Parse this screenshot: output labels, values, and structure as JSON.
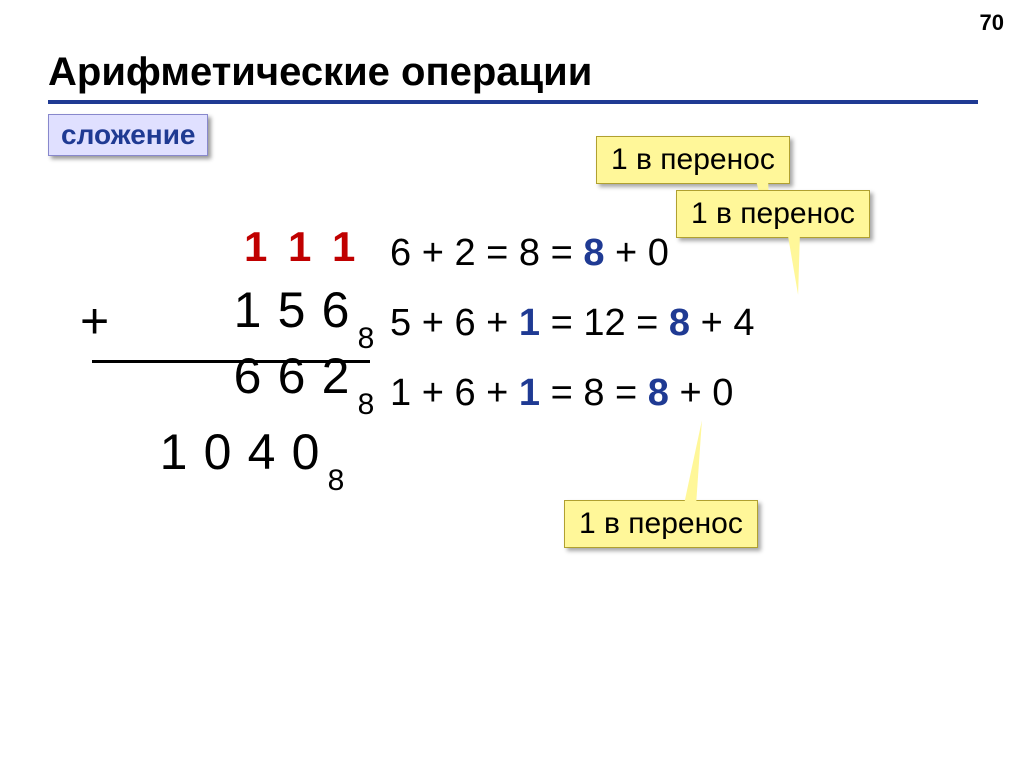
{
  "page_number": "70",
  "title": "Арифметические операции",
  "subtitle": "сложение",
  "colors": {
    "title_underline": "#1f3a93",
    "subtitle_bg": "#e0e0ff",
    "subtitle_text": "#1f3a93",
    "callout_bg": "#fff799",
    "carry_color": "#c00000",
    "accent_blue": "#1f3a93",
    "text": "#000000",
    "background": "#ffffff"
  },
  "callouts": {
    "c1": "1 в перенос",
    "c2": "1 в перенос",
    "c3": "1 в перенос"
  },
  "addition": {
    "base": "8",
    "carry": [
      "1",
      "1",
      "1"
    ],
    "operand_a": [
      "1",
      "5",
      "6"
    ],
    "operand_b": [
      "6",
      "6",
      "2"
    ],
    "plus": "+",
    "result": [
      "1",
      "0",
      "4",
      "0"
    ]
  },
  "explanations": {
    "line1": {
      "pre": "6 + 2 = 8 = ",
      "eight": "8",
      "post": " + 0"
    },
    "line2": {
      "pre": "5 + 6 + ",
      "carry": "1",
      "mid": " = 12 = ",
      "eight": "8",
      "post": " + 4"
    },
    "line3": {
      "pre": "1 + 6 + ",
      "carry": "1",
      "mid": " = 8 = ",
      "eight": "8",
      "post": " + 0"
    }
  },
  "typography": {
    "title_fontsize_pt": 30,
    "subtitle_fontsize_pt": 21,
    "digit_fontsize_pt": 38,
    "carry_fontsize_pt": 32,
    "explain_fontsize_pt": 29,
    "callout_fontsize_pt": 23,
    "font_family": "Arial"
  }
}
